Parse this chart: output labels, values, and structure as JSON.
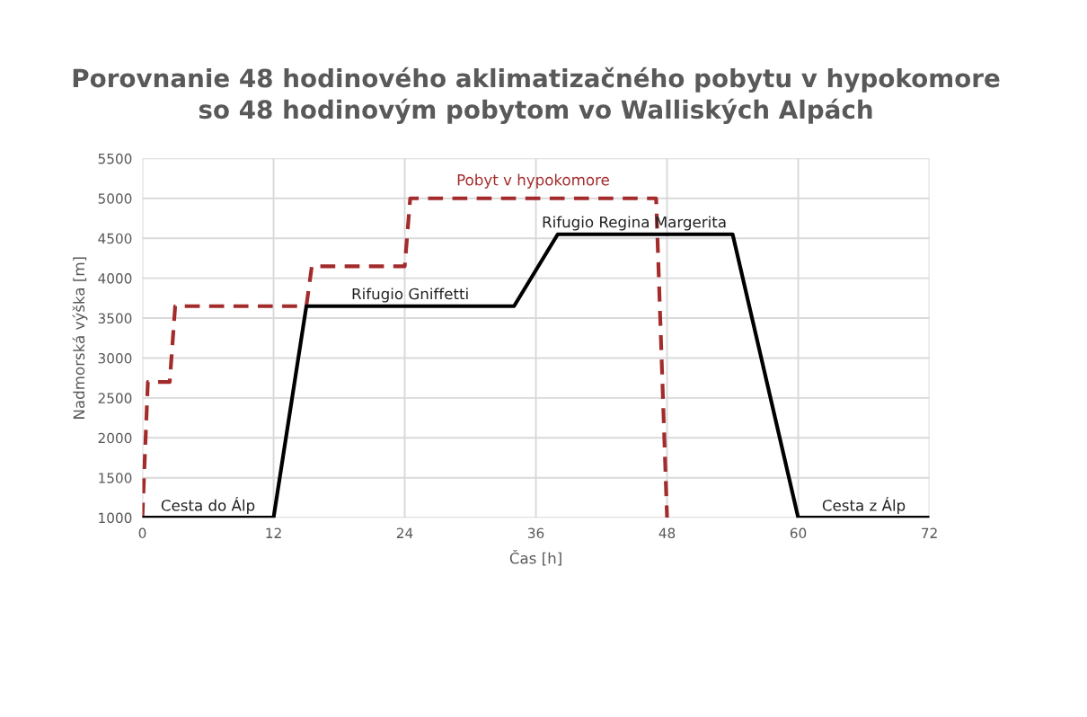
{
  "chart_data": {
    "type": "line",
    "title": "Porovnanie 48 hodinového aklimatizačného pobytu v hypokomore\nso 48 hodinovým pobytom vo Walliských Alpách",
    "xlabel": "Čas [h]",
    "ylabel": "Nadmorská výška [m]",
    "series": [
      {
        "name": "Pobyt v hypokomore",
        "color": "#a32b2b",
        "line_style": "dashed",
        "x": [
          0,
          0.5,
          2.5,
          3,
          15,
          15.5,
          24,
          24.5,
          47,
          48
        ],
        "values": [
          1000,
          2700,
          2700,
          3650,
          3650,
          4150,
          4150,
          5000,
          5000,
          1000
        ]
      },
      {
        "color": "#000000",
        "line_style": "solid",
        "x": [
          0,
          12,
          15,
          34,
          38,
          54,
          60,
          72
        ],
        "values": [
          1000,
          1000,
          3650,
          3650,
          4550,
          4550,
          1000,
          1000
        ]
      }
    ],
    "annotations": [
      {
        "text": "Cesta do Álp",
        "x": 6,
        "y": 1000
      },
      {
        "text": "Rifugio Gniffetti",
        "x": 24.5,
        "y": 3650
      },
      {
        "text": "Rifugio Regina Margerita",
        "x": 45,
        "y": 4550
      },
      {
        "text": "Cesta z Álp",
        "x": 66,
        "y": 1000
      }
    ],
    "xlim": [
      0,
      72
    ],
    "xticks": [
      0,
      12,
      24,
      36,
      48,
      60,
      72
    ],
    "ylim": [
      1000,
      5500
    ],
    "yticks": [
      1000,
      1500,
      2000,
      2500,
      3000,
      3500,
      4000,
      4500,
      5000,
      5500
    ],
    "grid": true,
    "legend": false,
    "marker": "none"
  }
}
